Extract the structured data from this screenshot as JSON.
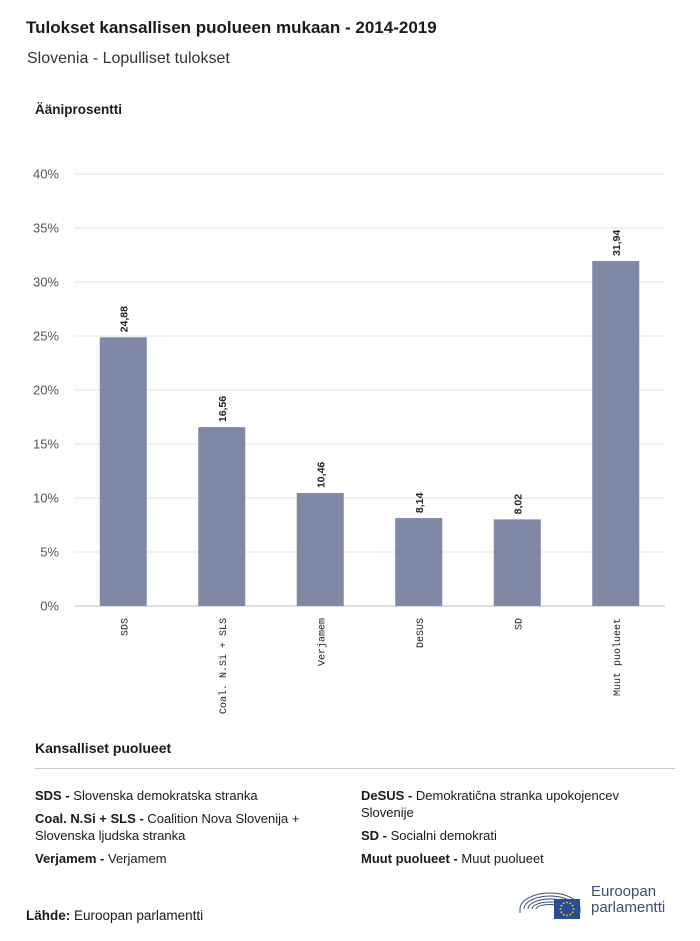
{
  "header": {
    "title": "Tulokset kansallisen puolueen mukaan - 2014-2019",
    "subtitle": "Slovenia - Lopulliset tulokset"
  },
  "chart_data": {
    "type": "bar",
    "ylabel": "Ääniprosentti",
    "categories": [
      "SDS",
      "Coal. N.Si + SLS",
      "Verjamem",
      "DeSUS",
      "SD",
      "Muut puolueet"
    ],
    "values": [
      24.88,
      16.56,
      10.46,
      8.14,
      8.02,
      31.94
    ],
    "value_labels": [
      "24,88",
      "16,56",
      "10,46",
      "8,14",
      "8,02",
      "31,94"
    ],
    "ylim": [
      0,
      40
    ],
    "yticks": [
      0,
      5,
      10,
      15,
      20,
      25,
      30,
      35,
      40
    ],
    "ytick_labels": [
      "0%",
      "5%",
      "10%",
      "15%",
      "20%",
      "25%",
      "30%",
      "35%",
      "40%"
    ],
    "grid": true,
    "bar_color": "#7f89a6"
  },
  "legend": {
    "title": "Kansalliset puolueet",
    "left": [
      {
        "abbr": "SDS -",
        "name": "Slovenska demokratska stranka"
      },
      {
        "abbr": "Coal. N.Si + SLS -",
        "name": "Coalition Nova Slovenija + Slovenska ljudska stranka"
      },
      {
        "abbr": "Verjamem -",
        "name": "Verjamem"
      }
    ],
    "right": [
      {
        "abbr": "DeSUS -",
        "name": "Demokratična stranka upokojencev Slovenije"
      },
      {
        "abbr": "SD -",
        "name": "Socialni demokrati"
      },
      {
        "abbr": "Muut puolueet -",
        "name": "Muut puolueet"
      }
    ]
  },
  "source": {
    "label": "Lähde:",
    "value": "Euroopan parlamentti"
  },
  "logo": {
    "line1": "Euroopan",
    "line2": "parlamentti",
    "color": "#3a4e79"
  }
}
